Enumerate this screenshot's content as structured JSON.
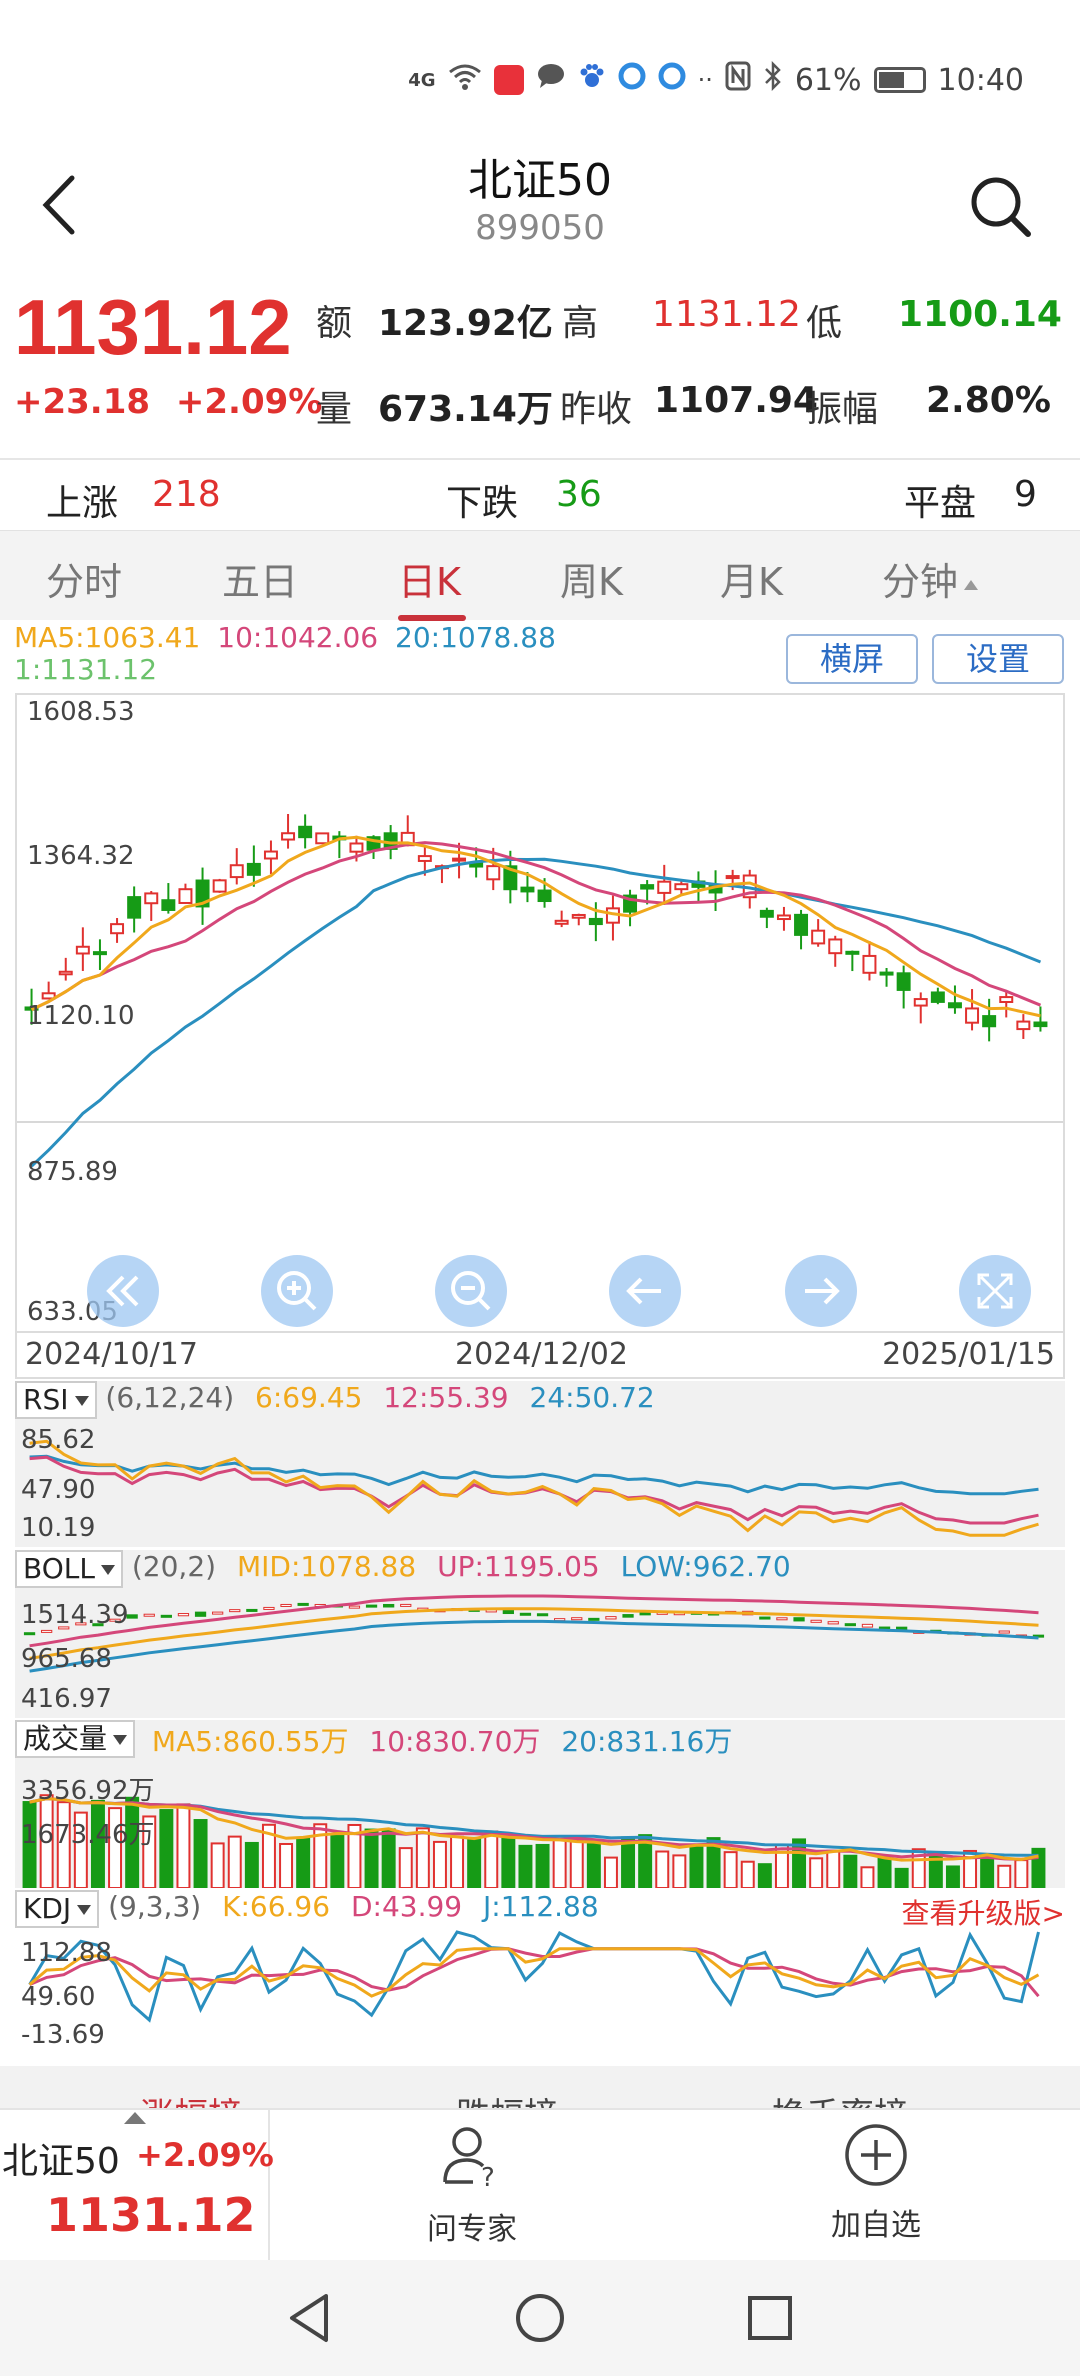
{
  "status_bar": {
    "signal": "4G",
    "battery": "61%",
    "battery_level": 0.61,
    "time": "10:40"
  },
  "header": {
    "title": "北证50",
    "code": "899050"
  },
  "quote": {
    "price": "1131.12",
    "change": "+23.18",
    "change_pct": "+2.09%",
    "amount_label": "额",
    "amount": "123.92亿",
    "high_label": "高",
    "high": "1131.12",
    "low_label": "低",
    "low": "1100.14",
    "volume_label": "量",
    "volume": "673.14万",
    "prev_close_label": "昨收",
    "prev_close": "1107.94",
    "amplitude_label": "振幅",
    "amplitude": "2.80%"
  },
  "breadth": {
    "up_label": "上涨",
    "up": "218",
    "down_label": "下跌",
    "down": "36",
    "flat_label": "平盘",
    "flat": "9"
  },
  "tabs": [
    "分时",
    "五日",
    "日K",
    "周K",
    "月K",
    "分钟"
  ],
  "active_tab": "日K",
  "ma_legend": {
    "ma5": "MA5:1063.41",
    "ma10": "10:1042.06",
    "ma20": "20:1078.88",
    "last": "1:1131.12"
  },
  "buttons": {
    "landscape": "横屏",
    "settings": "设置"
  },
  "kchart": {
    "y_labels": [
      "1608.53",
      "1364.32",
      "1120.10",
      "875.89",
      "633.05"
    ],
    "x_labels": [
      "2024/10/17",
      "2024/12/02",
      "2025/01/15"
    ],
    "controls": [
      "rewind-icon",
      "zoom-in-icon",
      "zoom-out-icon",
      "arrow-left-icon",
      "arrow-right-icon",
      "fullscreen-icon"
    ]
  },
  "rsi": {
    "name": "RSI",
    "params": "(6,12,24)",
    "v6": "6:69.45",
    "v12": "12:55.39",
    "v24": "24:50.72",
    "y_labels": [
      "85.62",
      "47.90",
      "10.19"
    ]
  },
  "boll": {
    "name": "BOLL",
    "params": "(20,2)",
    "mid": "MID:1078.88",
    "up": "UP:1195.05",
    "low": "LOW:962.70",
    "y_labels": [
      "1514.39",
      "965.68",
      "416.97"
    ]
  },
  "vol": {
    "name": "成交量",
    "ma5": "MA5:860.55万",
    "ma10": "10:830.70万",
    "ma20": "20:831.16万",
    "y_labels": [
      "3356.92万",
      "1673.46万"
    ]
  },
  "kdj": {
    "name": "KDJ",
    "params": "(9,3,3)",
    "k": "K:66.96",
    "d": "D:43.99",
    "j": "J:112.88",
    "upgrade": "查看升级版>",
    "y_labels": [
      "112.88",
      "49.60",
      "-13.69"
    ]
  },
  "peek_tabs": [
    "涨幅榜",
    "跌幅榜",
    "换手率榜"
  ],
  "bottom": {
    "stock_name": "北证50",
    "stock_pct": "+2.09%",
    "stock_price": "1131.12",
    "ask_expert": "问专家",
    "add_watch": "加自选"
  },
  "colors": {
    "up": "#e0312f",
    "down": "#169b16",
    "ma5": "#f0a81c",
    "ma10": "#d4477a",
    "ma20": "#2a8fbf",
    "accent": "#c9313a"
  }
}
